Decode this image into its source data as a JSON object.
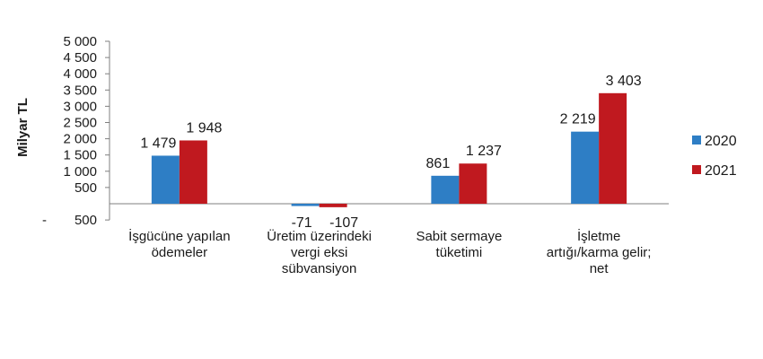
{
  "chart_data": {
    "type": "bar",
    "ylabel": "Milyar TL",
    "ylim": [
      -500,
      5000
    ],
    "yticks": [
      -500,
      500,
      1000,
      1500,
      2000,
      2500,
      3000,
      3500,
      4000,
      4500,
      5000
    ],
    "ytick_labels": [
      "- 500",
      "500",
      "1 000",
      "1 500",
      "2 000",
      "2 500",
      "3 000",
      "3 500",
      "4 000",
      "4 500",
      "5 000"
    ],
    "categories": [
      [
        "İşgücüne yapılan",
        "ödemeler"
      ],
      [
        "Üretim üzerindeki",
        "vergi eksi",
        "sübvansiyon"
      ],
      [
        "Sabit sermaye",
        "tüketimi"
      ],
      [
        "İşletme",
        "artığı/karma gelir;",
        "net"
      ]
    ],
    "series": [
      {
        "name": "2020",
        "color": "#2E7EC5",
        "values": [
          1479,
          -71,
          861,
          2219
        ],
        "labels": [
          "1 479",
          "-71",
          "861",
          "2 219"
        ]
      },
      {
        "name": "2021",
        "color": "#C0191F",
        "values": [
          1948,
          -107,
          1237,
          3403
        ],
        "labels": [
          "1 948",
          "-107",
          "1 237",
          "3 403"
        ]
      }
    ],
    "legend": "right",
    "grid": false
  }
}
